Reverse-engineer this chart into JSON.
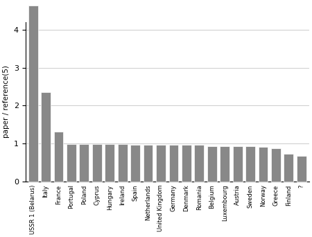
{
  "categories": [
    "USSR 1 (Belarus)",
    "Italy",
    "France",
    "Portugal",
    "Poland",
    "Cyprus",
    "Hungary",
    "Ireland",
    "Spain",
    "Netherlands",
    "United Kingdom",
    "Germany",
    "Denmark",
    "Romania",
    "Belgium",
    "Luxembourg",
    "Austria",
    "Sweden",
    "Norway",
    "Greece",
    "Finland",
    "?"
  ],
  "values": [
    4.65,
    2.35,
    1.32,
    0.99,
    0.99,
    0.99,
    0.98,
    0.98,
    0.97,
    0.96,
    0.96,
    0.96,
    0.96,
    0.96,
    0.93,
    0.93,
    0.93,
    0.92,
    0.9,
    0.88,
    0.73,
    0.67
  ],
  "bar_color": "#888888",
  "ylabel": "paper / reference",
  "ylabel_super": "(5)",
  "ylim": [
    0,
    4.2
  ],
  "yticks": [
    0,
    1,
    2,
    3,
    4
  ],
  "background_color": "#ffffff",
  "grid_color": "#cccccc",
  "bar_width": 0.75
}
